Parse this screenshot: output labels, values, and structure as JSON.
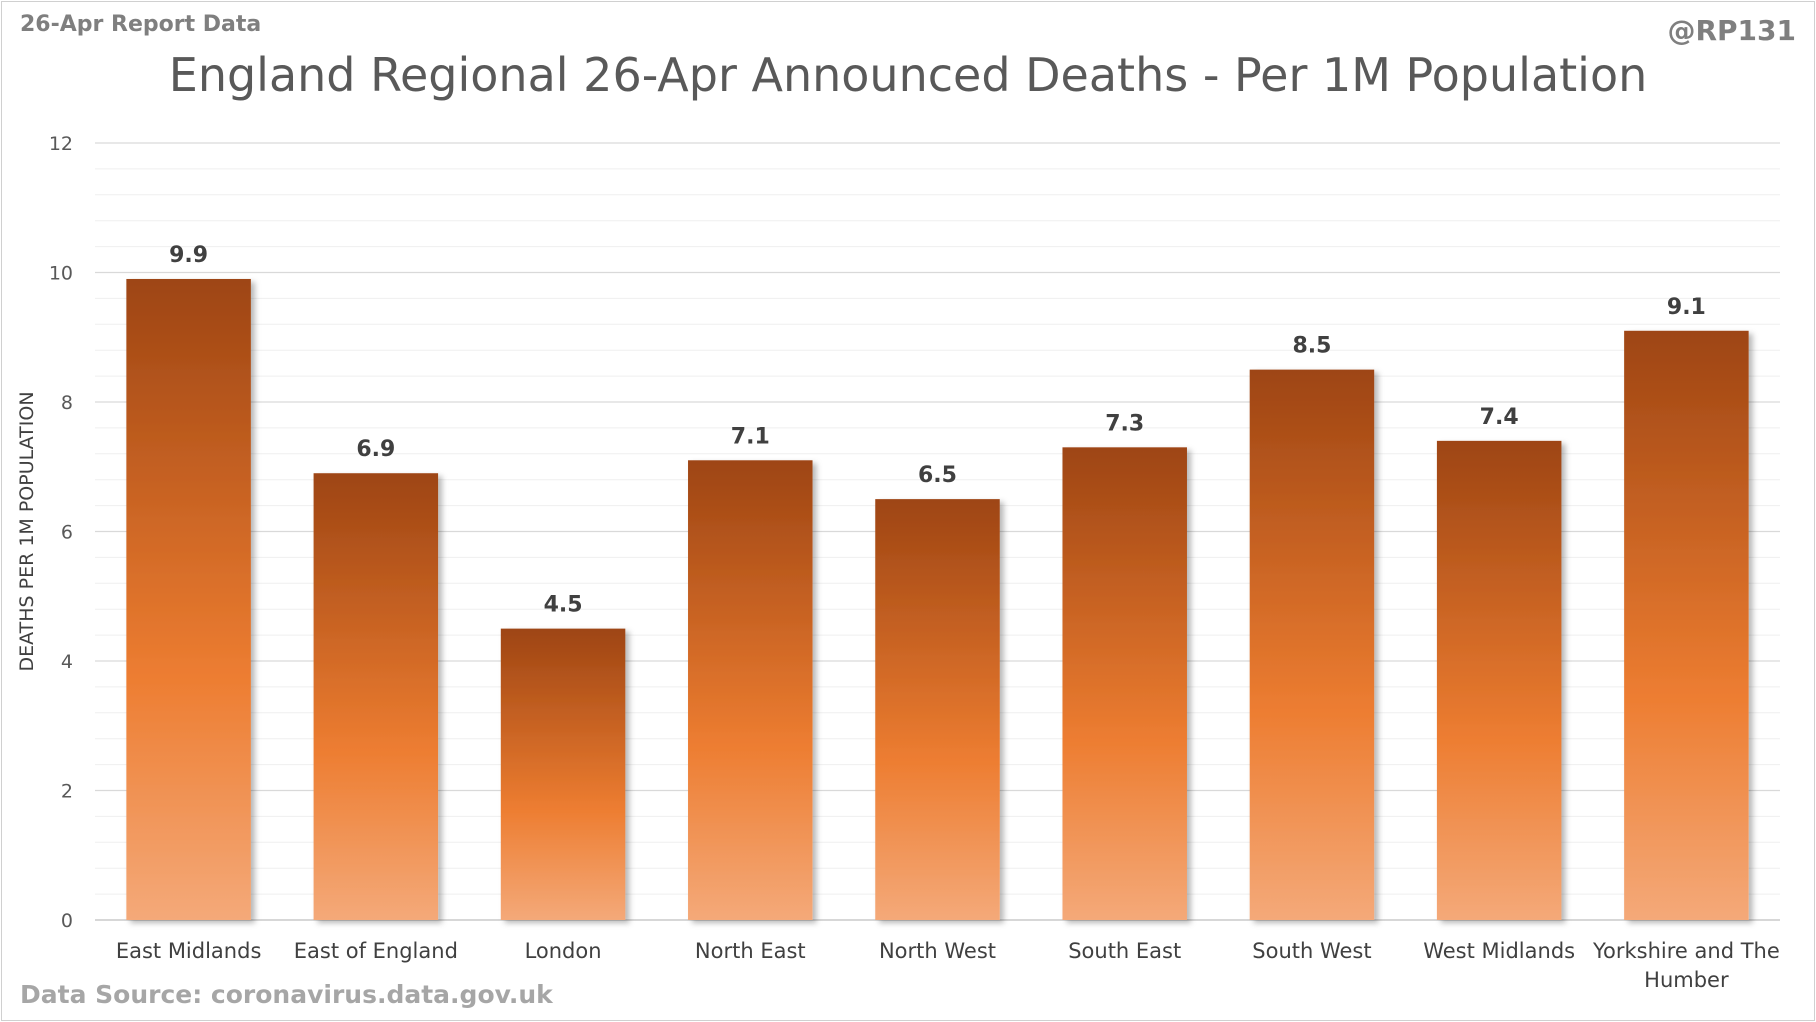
{
  "header": {
    "top_left": "26-Apr Report Data",
    "top_right": "@RP131"
  },
  "footer": {
    "source": "Data Source: coronavirus.data.gov.uk"
  },
  "chart_data": {
    "type": "bar",
    "title": "England Regional 26-Apr Announced Deaths - Per 1M Population",
    "xlabel": "",
    "ylabel": "DEATHS PER 1M POPULATION",
    "categories": [
      [
        "East Midlands"
      ],
      [
        "East of England"
      ],
      [
        "London"
      ],
      [
        "North East"
      ],
      [
        "North West"
      ],
      [
        "South East"
      ],
      [
        "South West"
      ],
      [
        "West Midlands"
      ],
      [
        "Yorkshire and The",
        "Humber"
      ]
    ],
    "values": [
      9.9,
      6.9,
      4.5,
      7.1,
      6.5,
      7.3,
      8.5,
      7.4,
      9.1
    ],
    "value_labels": [
      "9.9",
      "6.9",
      "4.5",
      "7.1",
      "6.5",
      "7.3",
      "8.5",
      "7.4",
      "9.1"
    ],
    "ylim": [
      0,
      12
    ],
    "yticks": [
      0,
      2,
      4,
      6,
      8,
      10,
      12
    ],
    "ytick_labels": [
      "0",
      "2",
      "4",
      "6",
      "8",
      "10",
      "12"
    ],
    "minor_step": 0.4,
    "grid": true,
    "legend": "none",
    "colors": {
      "bar_top": "#9e4513",
      "bar_mid": "#ed7d31",
      "bar_bottom": "#f4a979",
      "gridline_major": "#d9d9d9",
      "gridline_minor": "#efefef"
    }
  }
}
